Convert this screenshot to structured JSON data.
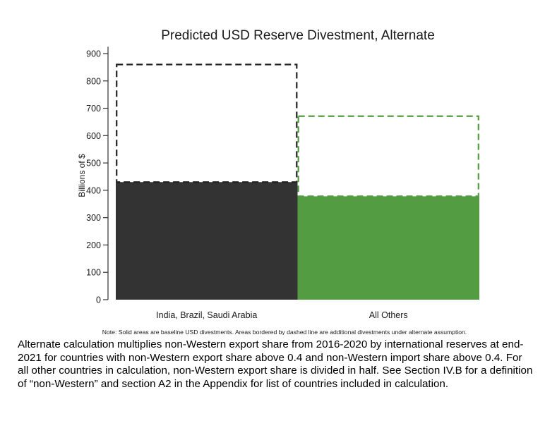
{
  "chart_data": {
    "type": "bar",
    "title": "Predicted USD Reserve Divestment, Alternate",
    "xlabel": "",
    "ylabel": "Billions of $",
    "ylim": [
      0,
      920
    ],
    "yticks": [
      0,
      100,
      200,
      300,
      400,
      500,
      600,
      700,
      800,
      900
    ],
    "categories": [
      "India, Brazil, Saudi Arabia",
      "All Others"
    ],
    "series": [
      {
        "values": [
          430,
          378
        ],
        "style": "solid"
      },
      {
        "values": [
          430,
          293
        ],
        "style": "dashed",
        "stacked_on": 0
      }
    ],
    "colors": {
      "bar_0": "#333333",
      "bar_1": "#549c41",
      "dashed_0": "#222222",
      "dashed_1": "#549c41"
    },
    "grid": false,
    "legend": "none",
    "note": "Note: Solid areas are baseline USD divestments. Areas bordered by dashed line are additional divestments under alternate assumption."
  },
  "caption": "Alternate calculation multiplies non-Western export share from 2016-2020 by international reserves at end-2021 for countries with non-Western export share above 0.4 and non-Western import share above 0.4.  For all other countries in calculation, non-Western export share is divided in half.  See Section IV.B for a definition of “non-Western” and section A2 in the Appendix for list of countries included in calculation."
}
